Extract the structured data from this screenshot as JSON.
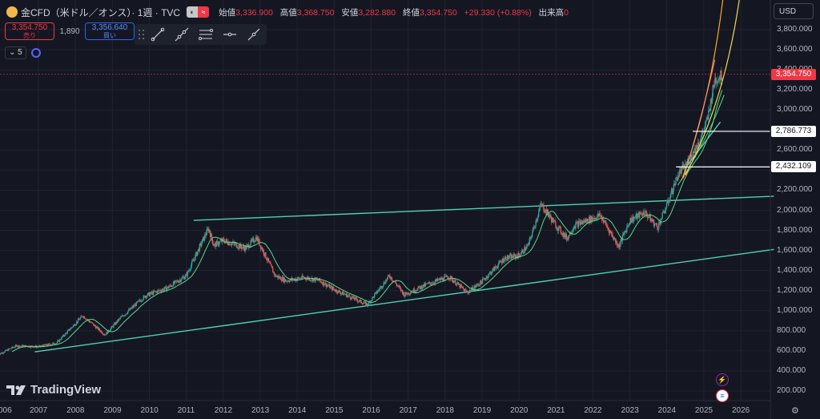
{
  "header": {
    "symbol": "金CFD（米ドル／オンス）· 1週 · TVC",
    "open_label": "始値",
    "open": "3,336.900",
    "high_label": "高値",
    "high": "3,368.750",
    "low_label": "安値",
    "low": "3,282.880",
    "close_label": "終値",
    "close": "3,354.750",
    "change": "+29.330 (+0.88%)",
    "volume_label": "出来高",
    "volume": "0"
  },
  "trade": {
    "sell_price": "3,354.750",
    "sell_label": "売り",
    "spread": "1,890",
    "buy_price": "3,356.640",
    "buy_label": "買い"
  },
  "indicators_count": "5",
  "currency": "USD",
  "y_axis_labels": [
    "3,800.000",
    "3,600.000",
    "3,400.000",
    "3,200.000",
    "3,000.000",
    "2,800.000",
    "2,600.000",
    "2,400.000",
    "2,200.000",
    "2,000.000",
    "1,800.000",
    "1,600.000",
    "1,400.000",
    "1,200.000",
    "1,000.000",
    "800.000",
    "600.000",
    "400.000",
    "200.000"
  ],
  "price_tags": {
    "last": "3,354.750",
    "level1": "2,786.773",
    "level2": "2,432.109"
  },
  "x_axis_labels": [
    "006",
    "2007",
    "2008",
    "2009",
    "2010",
    "2011",
    "2012",
    "2013",
    "2014",
    "2015",
    "2016",
    "2017",
    "2018",
    "2019",
    "2020",
    "2021",
    "2022",
    "2023",
    "2024",
    "2025",
    "2026"
  ],
  "brand": "TradingView",
  "colors": {
    "bg": "#141722",
    "up": "#26a69a",
    "down": "#ef5350",
    "trend": "#4fd1b4",
    "ma": "#5fd68a",
    "accent": "#f23645",
    "buy": "#2962ff"
  },
  "chart_data": {
    "type": "candlestick",
    "ylim": [
      100,
      3950
    ],
    "x_range": [
      2005.9,
      2026.9
    ],
    "price_path": [
      [
        2005.9,
        560
      ],
      [
        2006.4,
        650
      ],
      [
        2007.0,
        640
      ],
      [
        2007.5,
        680
      ],
      [
        2008.2,
        950
      ],
      [
        2008.8,
        760
      ],
      [
        2009.2,
        920
      ],
      [
        2009.9,
        1150
      ],
      [
        2010.5,
        1230
      ],
      [
        2011.0,
        1350
      ],
      [
        2011.6,
        1820
      ],
      [
        2011.75,
        1650
      ],
      [
        2012.0,
        1700
      ],
      [
        2012.6,
        1620
      ],
      [
        2012.9,
        1730
      ],
      [
        2013.4,
        1350
      ],
      [
        2013.7,
        1300
      ],
      [
        2014.2,
        1330
      ],
      [
        2014.6,
        1300
      ],
      [
        2015.0,
        1210
      ],
      [
        2015.9,
        1060
      ],
      [
        2016.5,
        1350
      ],
      [
        2016.9,
        1160
      ],
      [
        2017.5,
        1260
      ],
      [
        2018.1,
        1340
      ],
      [
        2018.6,
        1180
      ],
      [
        2019.0,
        1290
      ],
      [
        2019.6,
        1520
      ],
      [
        2020.0,
        1550
      ],
      [
        2020.25,
        1650
      ],
      [
        2020.6,
        2060
      ],
      [
        2021.0,
        1850
      ],
      [
        2021.3,
        1720
      ],
      [
        2021.5,
        1850
      ],
      [
        2022.2,
        1950
      ],
      [
        2022.7,
        1640
      ],
      [
        2023.0,
        1900
      ],
      [
        2023.4,
        1980
      ],
      [
        2023.75,
        1830
      ],
      [
        2024.0,
        2050
      ],
      [
        2024.3,
        2350
      ],
      [
        2024.6,
        2500
      ],
      [
        2024.9,
        2700
      ],
      [
        2025.1,
        2900
      ],
      [
        2025.3,
        3300
      ],
      [
        2025.5,
        3350
      ]
    ],
    "trendlines": [
      {
        "from": [
          2011.2,
          1900
        ],
        "to": [
          2026.9,
          2140
        ]
      },
      {
        "from": [
          2006.9,
          590
        ],
        "to": [
          2026.9,
          1610
        ]
      }
    ],
    "levels": [
      2786.773,
      2432.109
    ],
    "last_price": 3354.75
  }
}
